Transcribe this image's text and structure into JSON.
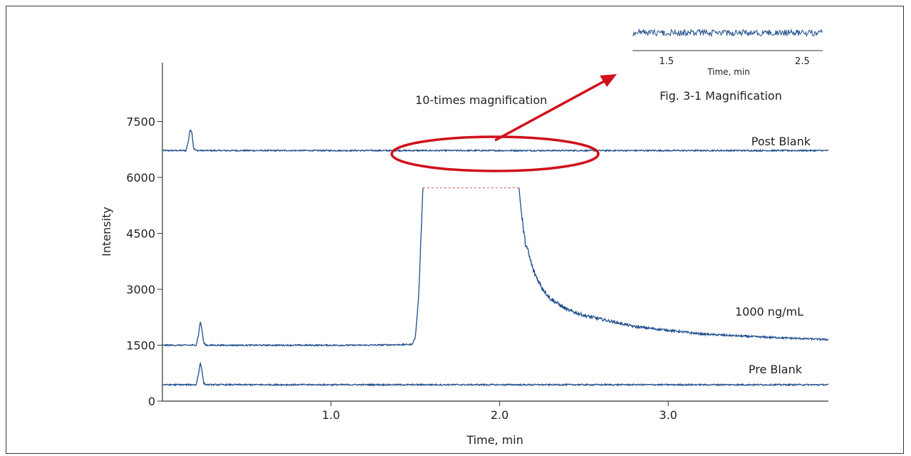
{
  "chart_data": [
    {
      "type": "line",
      "title": "",
      "xlabel": "Time, min",
      "ylabel": "Intensity",
      "xlim": [
        0.0,
        3.95
      ],
      "ylim": [
        0,
        9000
      ],
      "x_ticks": [
        1.0,
        2.0,
        3.0
      ],
      "x_tick_labels": [
        "1.0",
        "2.0",
        "3.0"
      ],
      "y_ticks": [
        0,
        1500,
        3000,
        4500,
        6000,
        7500
      ],
      "y_tick_labels": [
        "0",
        "1500",
        "3000",
        "4500",
        "6000",
        "7500"
      ],
      "grid": false,
      "series": [
        {
          "name": "Post Blank",
          "x": [
            0.0,
            0.14,
            0.155,
            0.165,
            0.175,
            0.185,
            0.2,
            0.5,
            1.0,
            1.5,
            2.0,
            2.5,
            3.0,
            3.5,
            3.95
          ],
          "y": [
            6720,
            6720,
            7000,
            7300,
            7200,
            6780,
            6720,
            6720,
            6720,
            6720,
            6720,
            6720,
            6720,
            6720,
            6720
          ],
          "color": "#1f4e8c"
        },
        {
          "name": "1000 ng/mL",
          "x": [
            0.0,
            0.2,
            0.215,
            0.225,
            0.235,
            0.245,
            0.26,
            0.8,
            1.2,
            1.48,
            1.5,
            1.52,
            1.545,
            2.115,
            2.13,
            2.15,
            2.2,
            2.25,
            2.3,
            2.4,
            2.5,
            2.6,
            2.7,
            2.8,
            3.0,
            3.2,
            3.5,
            3.95
          ],
          "y": [
            1500,
            1500,
            1800,
            2150,
            1900,
            1560,
            1500,
            1500,
            1500,
            1520,
            1700,
            2800,
            5720,
            5720,
            5000,
            4300,
            3500,
            3050,
            2750,
            2450,
            2300,
            2200,
            2100,
            2000,
            1900,
            1800,
            1730,
            1650
          ],
          "color": "#1f4e8c",
          "saturated_range": [
            1.545,
            2.115
          ],
          "saturated_level": 5720
        },
        {
          "name": "Pre Blank",
          "x": [
            0.0,
            0.2,
            0.215,
            0.225,
            0.235,
            0.245,
            0.26,
            1.0,
            2.0,
            3.0,
            3.95
          ],
          "y": [
            440,
            440,
            750,
            1050,
            800,
            480,
            440,
            440,
            440,
            440,
            440
          ],
          "color": "#1f4e8c"
        }
      ],
      "annotations": [
        {
          "text": "10-times magnification",
          "color": "#d0101b"
        }
      ],
      "highlight_ellipse": {
        "x_range": [
          1.38,
          2.58
        ],
        "y_center": 6720,
        "color": "#d0101b"
      }
    },
    {
      "type": "line",
      "title": "",
      "xlabel": "Time, min",
      "x_ticks": [
        1.5,
        2.5
      ],
      "x_tick_labels": [
        "1.5",
        "2.5"
      ],
      "xlim": [
        1.25,
        2.65
      ],
      "caption": "Fig. 3-1  Magnification",
      "series": [
        {
          "x": [
            1.25,
            2.65
          ],
          "y_baseline": 0,
          "color": "#1f4e8c"
        }
      ]
    }
  ]
}
